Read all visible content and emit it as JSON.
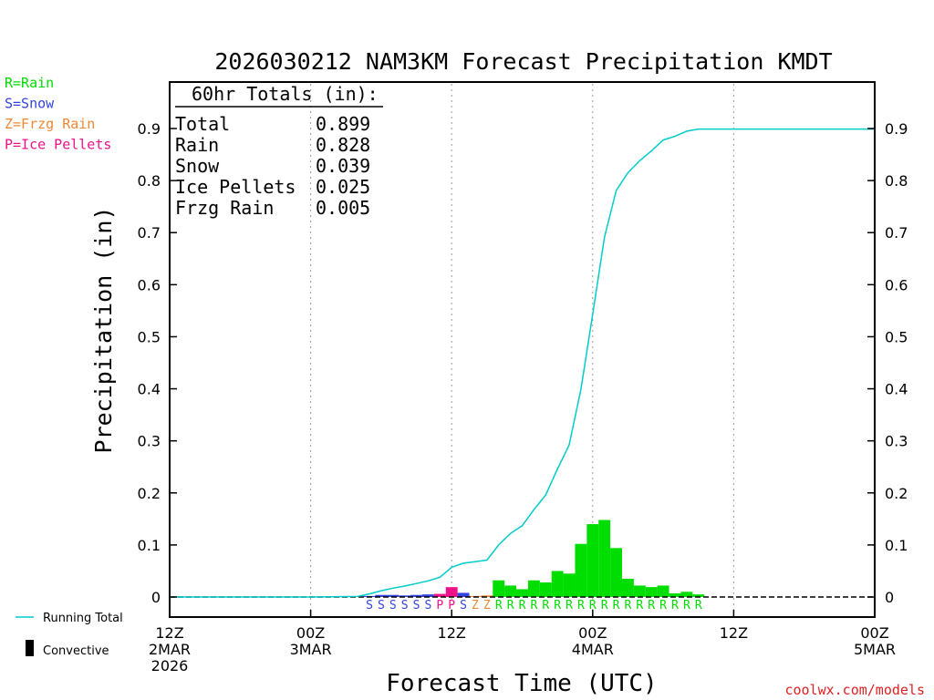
{
  "chart_data": {
    "type": "bar",
    "title": "2026030212 NAM3KM Forecast Precipitation KMDT",
    "xlabel": "Forecast Time (UTC)",
    "ylabel": "Precipitation (in)",
    "ylim": [
      0,
      1.0
    ],
    "yticks": [
      0,
      0.1,
      0.2,
      0.3,
      0.4,
      0.5,
      0.6,
      0.7,
      0.8,
      0.9
    ],
    "ytick_labels_left": [
      "0",
      "0.1",
      "0.2",
      "0.3",
      "0.4",
      "0.5",
      "0.6",
      "0.7",
      "0.8",
      "0.9"
    ],
    "ytick_labels_right": [
      "0",
      "0.1",
      "0.2",
      "0.3",
      "0.4",
      "0.5",
      "0.6",
      "0.7",
      "0.8",
      "0.9"
    ],
    "xlim_hours": [
      0,
      60
    ],
    "xticks": [
      {
        "hour": 0,
        "lines": [
          "12Z",
          "2MAR",
          "2026"
        ]
      },
      {
        "hour": 12,
        "lines": [
          "00Z",
          "3MAR"
        ]
      },
      {
        "hour": 24,
        "lines": [
          "12Z"
        ]
      },
      {
        "hour": 36,
        "lines": [
          "00Z",
          "4MAR"
        ]
      },
      {
        "hour": 48,
        "lines": [
          "12Z"
        ]
      },
      {
        "hour": 60,
        "lines": [
          "00Z",
          "5MAR"
        ]
      }
    ],
    "gridlines_hours": [
      12,
      24,
      36,
      48
    ],
    "bar_width_hours": 1,
    "bars": [
      {
        "hour": 17,
        "value": 0.002,
        "ptype": "S"
      },
      {
        "hour": 18,
        "value": 0.004,
        "ptype": "S"
      },
      {
        "hour": 19,
        "value": 0.004,
        "ptype": "S"
      },
      {
        "hour": 20,
        "value": 0.003,
        "ptype": "S"
      },
      {
        "hour": 21,
        "value": 0.004,
        "ptype": "S"
      },
      {
        "hour": 22,
        "value": 0.005,
        "ptype": "S"
      },
      {
        "hour": 23,
        "value": 0.006,
        "ptype": "P"
      },
      {
        "hour": 24,
        "value": 0.019,
        "ptype": "P"
      },
      {
        "hour": 25,
        "value": 0.008,
        "ptype": "S"
      },
      {
        "hour": 26,
        "value": 0.002,
        "ptype": "Z"
      },
      {
        "hour": 27,
        "value": 0.003,
        "ptype": "Z"
      },
      {
        "hour": 28,
        "value": 0.032,
        "ptype": "R"
      },
      {
        "hour": 29,
        "value": 0.022,
        "ptype": "R"
      },
      {
        "hour": 30,
        "value": 0.015,
        "ptype": "R"
      },
      {
        "hour": 31,
        "value": 0.032,
        "ptype": "R"
      },
      {
        "hour": 32,
        "value": 0.028,
        "ptype": "R"
      },
      {
        "hour": 33,
        "value": 0.05,
        "ptype": "R"
      },
      {
        "hour": 34,
        "value": 0.045,
        "ptype": "R"
      },
      {
        "hour": 35,
        "value": 0.102,
        "ptype": "R"
      },
      {
        "hour": 36,
        "value": 0.14,
        "ptype": "R"
      },
      {
        "hour": 37,
        "value": 0.148,
        "ptype": "R"
      },
      {
        "hour": 38,
        "value": 0.094,
        "ptype": "R"
      },
      {
        "hour": 39,
        "value": 0.035,
        "ptype": "R"
      },
      {
        "hour": 40,
        "value": 0.022,
        "ptype": "R"
      },
      {
        "hour": 41,
        "value": 0.019,
        "ptype": "R"
      },
      {
        "hour": 42,
        "value": 0.022,
        "ptype": "R"
      },
      {
        "hour": 43,
        "value": 0.007,
        "ptype": "R"
      },
      {
        "hour": 44,
        "value": 0.01,
        "ptype": "R"
      },
      {
        "hour": 45,
        "value": 0.005,
        "ptype": "R"
      }
    ],
    "ptype_colors": {
      "R": "#00dd00",
      "S": "#3344dd",
      "Z": "#ee8833",
      "P": "#ee1188"
    },
    "running_total": {
      "name": "Running Total",
      "color": "#00cccc",
      "x": [
        0,
        12,
        16,
        17,
        18,
        19,
        20,
        21,
        22,
        23,
        24,
        25,
        26,
        27,
        28,
        29,
        30,
        31,
        32,
        33,
        34,
        35,
        36,
        37,
        38,
        39,
        40,
        41,
        42,
        43,
        44,
        45,
        46,
        60
      ],
      "y": [
        0,
        0,
        0.001,
        0.006,
        0.012,
        0.017,
        0.021,
        0.026,
        0.031,
        0.038,
        0.057,
        0.065,
        0.068,
        0.071,
        0.1,
        0.122,
        0.137,
        0.168,
        0.196,
        0.246,
        0.292,
        0.399,
        0.543,
        0.691,
        0.781,
        0.815,
        0.838,
        0.857,
        0.878,
        0.885,
        0.895,
        0.899,
        0.899,
        0.899
      ]
    },
    "totals_box": {
      "header": "60hr Totals (in):",
      "rows": [
        {
          "label": "Total",
          "value": "0.899"
        },
        {
          "label": "Rain",
          "value": "0.828"
        },
        {
          "label": "Snow",
          "value": "0.039"
        },
        {
          "label": "Ice Pellets",
          "value": "0.025"
        },
        {
          "label": "Frzg Rain",
          "value": "0.005"
        }
      ]
    },
    "ptype_legend": [
      {
        "text": "R=Rain",
        "color": "#00dd00"
      },
      {
        "text": "S=Snow",
        "color": "#3344dd"
      },
      {
        "text": "Z=Frzg Rain",
        "color": "#ee8833"
      },
      {
        "text": "P=Ice Pellets",
        "color": "#ee1188"
      }
    ],
    "bottom_legend": [
      {
        "kind": "line",
        "text": "Running Total",
        "color": "#00cccc"
      },
      {
        "kind": "bar",
        "text": "Convective",
        "color": "#000000"
      }
    ],
    "credit": "coolwx.com/models",
    "credit_color": "#dd2222"
  }
}
